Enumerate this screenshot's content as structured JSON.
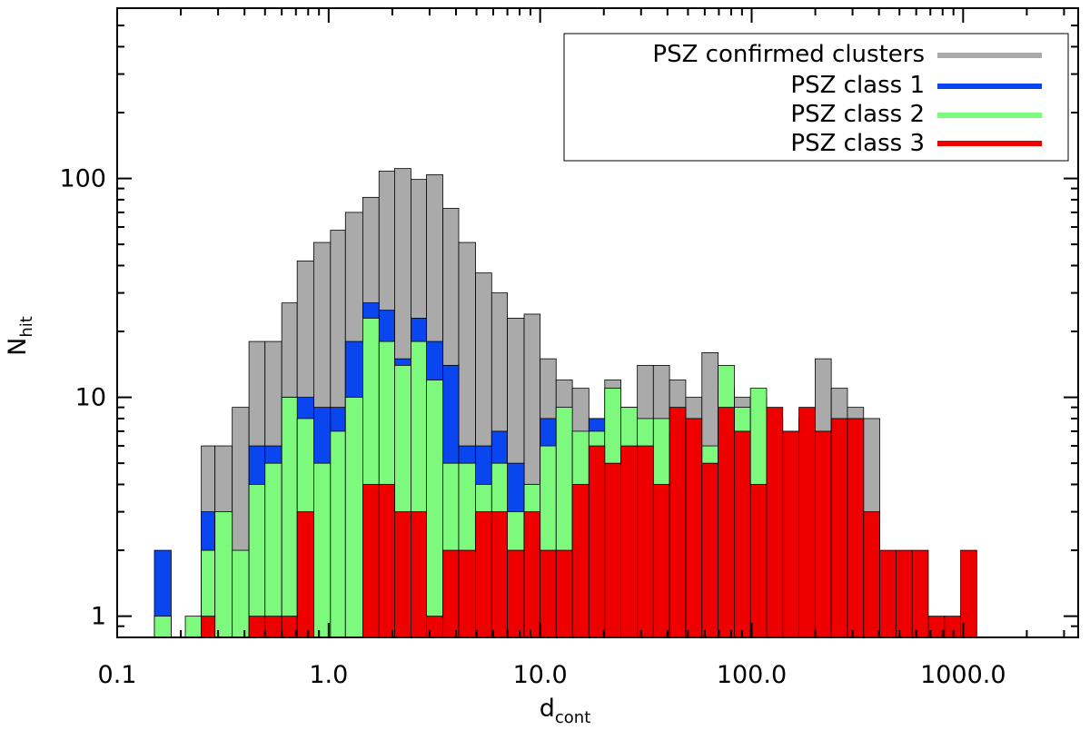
{
  "chart_data": {
    "type": "bar",
    "stacked_overlay": true,
    "x_scale": "log",
    "y_scale": "log",
    "xlim": [
      0.1,
      3500
    ],
    "ylim": [
      0.8,
      600
    ],
    "x_ticks": [
      {
        "value": 0.1,
        "label": "0.1"
      },
      {
        "value": 1,
        "label": "1.0"
      },
      {
        "value": 10,
        "label": "10.0"
      },
      {
        "value": 100,
        "label": "100.0"
      },
      {
        "value": 1000,
        "label": "1000.0"
      }
    ],
    "y_ticks": [
      {
        "value": 1,
        "label": "1"
      },
      {
        "value": 10,
        "label": "10"
      },
      {
        "value": 100,
        "label": "100"
      }
    ],
    "xlabel": {
      "main": "d",
      "sub": "cont"
    },
    "ylabel": {
      "main": "N",
      "sub": "hit"
    },
    "bin_edges": [
      0.15,
      0.18,
      0.21,
      0.25,
      0.29,
      0.35,
      0.42,
      0.5,
      0.6,
      0.71,
      0.85,
      1.02,
      1.2,
      1.45,
      1.73,
      2.05,
      2.45,
      2.9,
      3.47,
      4.12,
      4.95,
      5.9,
      7.0,
      8.4,
      10.0,
      11.9,
      14.2,
      17.0,
      20.2,
      24.1,
      28.8,
      34.3,
      40.9,
      48.8,
      58.2,
      69.4,
      82.8,
      98.7,
      117.7,
      140.3,
      167.4,
      199.6,
      238.0,
      283.8,
      338.4,
      403.6,
      481.3,
      573.9,
      684.4,
      816.1,
      973.3,
      1160.0,
      1384.0,
      1650.0
    ],
    "series": [
      {
        "name": "PSZ confirmed clusters",
        "color": "#aaaaaa",
        "values": [
          0,
          0,
          0,
          6,
          6,
          9,
          18,
          18,
          27,
          42,
          51,
          58,
          70,
          82,
          108,
          111,
          99,
          104,
          73,
          51,
          37,
          30,
          23,
          24,
          15,
          12,
          11,
          8,
          12,
          9,
          14,
          14,
          12,
          10,
          16,
          11,
          10,
          10,
          8,
          7,
          8,
          15,
          11,
          9,
          8,
          0,
          0,
          0,
          0,
          0,
          0,
          0,
          0
        ]
      },
      {
        "name": "PSZ class 1",
        "color": "#0a46f0",
        "values": [
          2,
          0,
          0,
          3,
          0,
          0,
          6,
          6,
          10,
          10,
          9,
          9,
          18,
          27,
          25,
          15,
          23,
          18,
          14,
          6,
          6,
          7,
          5,
          0,
          8,
          0,
          0,
          8,
          0,
          0,
          0,
          0,
          0,
          0,
          0,
          0,
          0,
          0,
          0,
          0,
          0,
          0,
          0,
          0,
          0,
          0,
          0,
          0,
          0,
          0,
          0,
          0,
          0
        ]
      },
      {
        "name": "PSZ class 2",
        "color": "#7dfa7d",
        "values": [
          1,
          0,
          1,
          2,
          3,
          2,
          4,
          5,
          10,
          8,
          5,
          7,
          10,
          23,
          18,
          14,
          18,
          12,
          5,
          5,
          4,
          5,
          3,
          4,
          6,
          9,
          7,
          7,
          11,
          9,
          8,
          8,
          7,
          5,
          6,
          14,
          9,
          11,
          7,
          4,
          5,
          0,
          0,
          0,
          0,
          0,
          0,
          0,
          0,
          0,
          0,
          0,
          0
        ]
      },
      {
        "name": "PSZ class 3",
        "color": "#ee0000",
        "values": [
          0,
          0,
          0,
          1,
          0,
          0,
          1,
          1,
          1,
          3,
          0,
          0,
          0,
          4,
          4,
          3,
          3,
          1,
          2,
          2,
          3,
          3,
          2,
          3,
          2,
          2,
          4,
          6,
          5,
          6,
          6,
          4,
          9,
          8,
          5,
          9,
          7,
          4,
          9,
          7,
          9,
          7,
          8,
          8,
          3,
          2,
          2,
          2,
          1,
          1,
          2,
          0,
          0
        ]
      }
    ],
    "legend": {
      "position": "top-right",
      "entries": [
        {
          "label": "PSZ confirmed clusters",
          "color": "#aaaaaa"
        },
        {
          "label": "PSZ class 1",
          "color": "#0a46f0"
        },
        {
          "label": "PSZ class 2",
          "color": "#7dfa7d"
        },
        {
          "label": "PSZ class 3",
          "color": "#ee0000"
        }
      ]
    }
  }
}
